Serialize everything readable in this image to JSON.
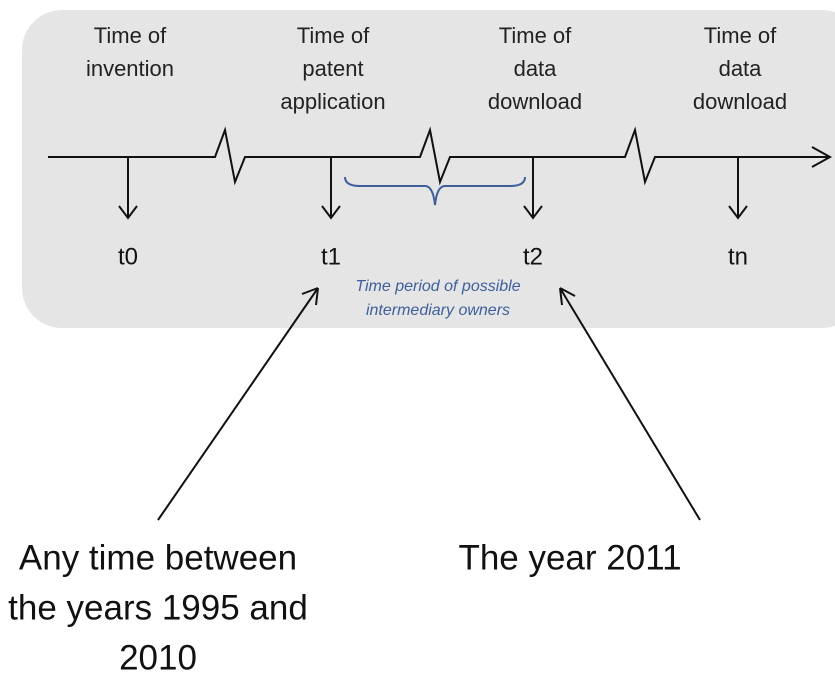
{
  "columns": [
    {
      "heading": [
        "Time of",
        "invention"
      ],
      "marker": "t0"
    },
    {
      "heading": [
        "Time of",
        "patent",
        "application"
      ],
      "marker": "t1"
    },
    {
      "heading": [
        "Time of",
        "data",
        "download"
      ],
      "marker": "t2"
    },
    {
      "heading": [
        "Time of",
        "data",
        "download"
      ],
      "marker": "tn"
    }
  ],
  "brace_label": [
    "Time period of possible",
    "intermediary owners"
  ],
  "notes": [
    {
      "lines": [
        "Any time between",
        "the years 1995 and",
        "2010"
      ]
    },
    {
      "lines": [
        "The year 2011"
      ]
    }
  ]
}
